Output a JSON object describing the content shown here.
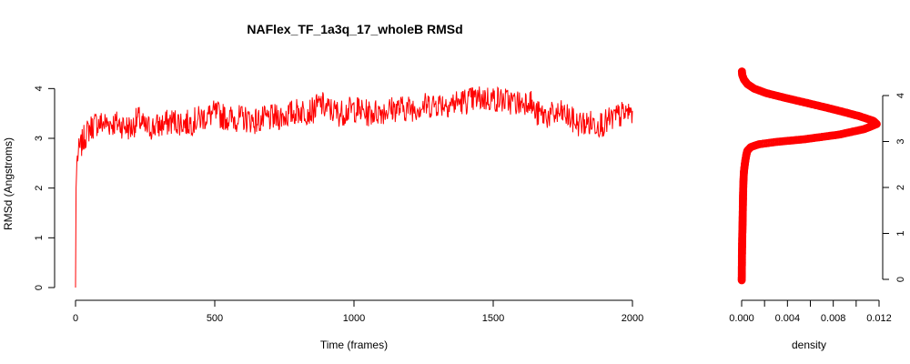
{
  "chart_data": [
    {
      "type": "line",
      "title": "NAFlex_TF_1a3q_17_wholeB RMSd",
      "xlabel": "Time (frames)",
      "ylabel": "RMSd (Angstroms)",
      "xlim": [
        0,
        2000
      ],
      "ylim": [
        0,
        4.5
      ],
      "xticks": [
        0,
        500,
        1000,
        1500,
        2000
      ],
      "yticks": [
        0,
        1,
        2,
        3,
        4
      ],
      "grid": false,
      "color": "#ff0000",
      "series": [
        {
          "x": [
            0,
            2,
            5,
            10,
            20,
            30,
            50,
            75,
            100,
            150,
            200,
            225,
            250,
            300,
            350,
            400,
            450,
            500,
            550,
            600,
            650,
            700,
            750,
            800,
            850,
            880,
            900,
            950,
            1000,
            1050,
            1100,
            1150,
            1200,
            1250,
            1300,
            1350,
            1400,
            1450,
            1500,
            1550,
            1600,
            1630,
            1650,
            1700,
            1750,
            1800,
            1850,
            1900,
            1950,
            2000
          ],
          "y": [
            0.0,
            2.0,
            2.55,
            2.7,
            2.85,
            3.0,
            3.2,
            3.3,
            3.3,
            3.3,
            3.2,
            3.4,
            3.2,
            3.25,
            3.35,
            3.3,
            3.4,
            3.5,
            3.4,
            3.4,
            3.35,
            3.4,
            3.45,
            3.55,
            3.55,
            3.7,
            3.6,
            3.5,
            3.6,
            3.5,
            3.55,
            3.6,
            3.6,
            3.65,
            3.7,
            3.7,
            3.75,
            3.8,
            3.8,
            3.75,
            3.7,
            3.8,
            3.5,
            3.45,
            3.5,
            3.3,
            3.3,
            3.3,
            3.45,
            3.55
          ]
        }
      ]
    },
    {
      "type": "scatter",
      "xlabel": "density",
      "xlim": [
        0,
        0.012
      ],
      "ylim": [
        0,
        4.5
      ],
      "xticks": [
        "0.000",
        "0.004",
        "0.008",
        "0.012"
      ],
      "yticks": [
        0,
        1,
        2,
        3,
        4
      ],
      "grid": false,
      "color": "#ff0000",
      "series": [
        {
          "density": [
            1e-05,
            2e-05,
            3e-05,
            5e-05,
            8e-05,
            0.0001,
            0.00012,
            0.00015,
            0.0002,
            0.0003,
            0.0004,
            0.0005,
            0.0008,
            0.0015,
            0.003,
            0.0055,
            0.0085,
            0.0107,
            0.0118,
            0.0115,
            0.0103,
            0.0088,
            0.0072,
            0.0055,
            0.0038,
            0.0022,
            0.0011,
            0.0005,
            0.0002,
            5e-05,
            2e-05
          ],
          "rmsd": [
            -0.02,
            0.3,
            0.6,
            0.9,
            1.2,
            1.5,
            1.8,
            2.1,
            2.35,
            2.55,
            2.7,
            2.8,
            2.88,
            2.94,
            2.99,
            3.05,
            3.15,
            3.27,
            3.38,
            3.45,
            3.55,
            3.65,
            3.75,
            3.85,
            3.95,
            4.05,
            4.15,
            4.25,
            4.35,
            4.45,
            4.55
          ]
        }
      ]
    }
  ]
}
